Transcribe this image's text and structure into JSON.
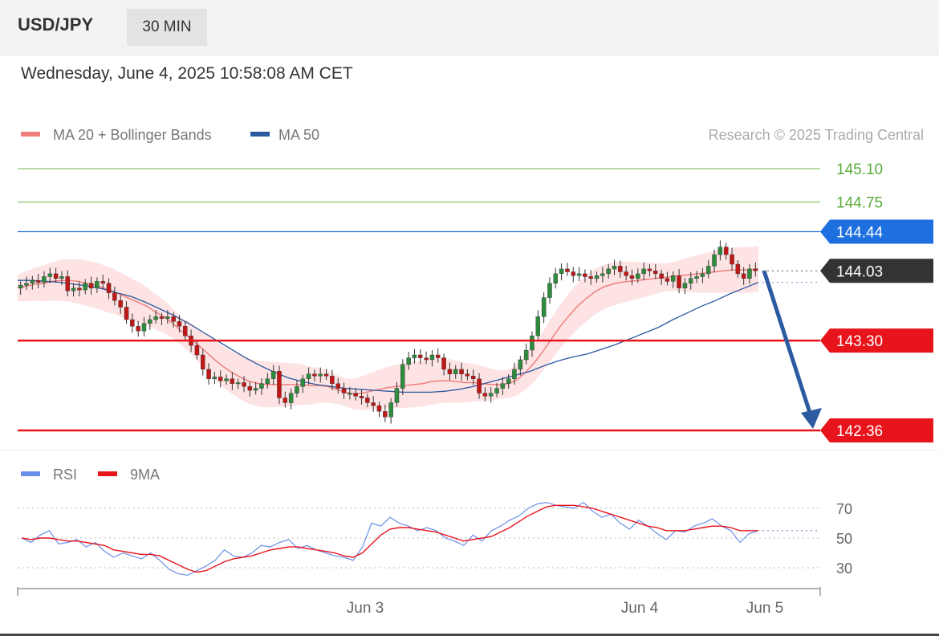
{
  "header": {
    "symbol": "USD/JPY",
    "timeframe": "30 MIN"
  },
  "date_label": "Wednesday, June 4, 2025 10:58:08 AM CET",
  "colors": {
    "bollinger": "#f08080",
    "ma50": "#2c5aa0",
    "resistance": "#8cc870",
    "pivot": "#1e6fe0",
    "support": "#e8141c",
    "current": "#333333",
    "rsi": "#6a8ee8",
    "rsi_ma": "#e8141c",
    "arrow": "#2c5aa0"
  },
  "chart_data": [
    {
      "type": "candlestick",
      "legend": [
        {
          "label": "MA 20 + Bollinger Bands",
          "color": "#f08080"
        },
        {
          "label": "MA 50",
          "color": "#2c5aa0"
        }
      ],
      "credit": "Research © 2025 Trading Central",
      "ylim": [
        142.3,
        145.2
      ],
      "levels": [
        {
          "label": "145.10",
          "value": 145.1,
          "kind": "resistance"
        },
        {
          "label": "144.75",
          "value": 144.75,
          "kind": "resistance"
        },
        {
          "label": "144.44",
          "value": 144.44,
          "kind": "pivot"
        },
        {
          "label": "144.03",
          "value": 144.03,
          "kind": "current"
        },
        {
          "label": "143.30",
          "value": 143.3,
          "kind": "support"
        },
        {
          "label": "142.36",
          "value": 142.36,
          "kind": "support"
        }
      ],
      "forecast_arrow": {
        "from": 144.03,
        "to": 142.36
      },
      "close": [
        143.88,
        143.9,
        143.93,
        143.91,
        143.97,
        144.0,
        143.95,
        143.97,
        143.82,
        143.85,
        143.83,
        143.9,
        143.85,
        143.92,
        143.9,
        143.8,
        143.72,
        143.65,
        143.52,
        143.45,
        143.4,
        143.48,
        143.52,
        143.55,
        143.53,
        143.55,
        143.5,
        143.45,
        143.35,
        143.25,
        143.15,
        143.0,
        142.9,
        142.92,
        142.88,
        142.9,
        142.85,
        142.86,
        142.82,
        142.78,
        142.8,
        142.85,
        142.9,
        142.98,
        142.7,
        142.65,
        142.75,
        142.82,
        142.9,
        142.95,
        142.93,
        142.95,
        142.93,
        142.85,
        142.8,
        142.75,
        142.75,
        142.72,
        142.7,
        142.65,
        142.62,
        142.56,
        142.5,
        142.65,
        142.8,
        143.05,
        143.12,
        143.15,
        143.12,
        143.1,
        143.15,
        143.12,
        143.0,
        142.95,
        143.0,
        142.95,
        142.93,
        142.9,
        142.75,
        142.72,
        142.75,
        142.8,
        142.85,
        142.9,
        143.0,
        143.1,
        143.2,
        143.35,
        143.55,
        143.75,
        143.9,
        144.0,
        144.05,
        144.02,
        143.98,
        144.0,
        143.97,
        143.95,
        143.98,
        144.0,
        144.05,
        144.08,
        144.02,
        143.98,
        143.95,
        144.0,
        144.05,
        144.03,
        144.0,
        143.95,
        143.92,
        143.98,
        143.85,
        143.9,
        143.95,
        143.97,
        144.0,
        144.08,
        144.2,
        144.28,
        144.2,
        144.1,
        144.0,
        143.95,
        144.05,
        144.03
      ],
      "ma20": [
        143.85,
        143.87,
        143.89,
        143.9,
        143.92,
        143.93,
        143.93,
        143.92,
        143.9,
        143.88,
        143.85,
        143.82,
        143.78,
        143.74,
        143.7,
        143.66,
        143.6,
        143.55,
        143.48,
        143.4,
        143.33,
        143.25,
        143.17,
        143.09,
        143.02,
        142.96,
        142.91,
        142.87,
        142.85,
        142.84,
        142.84,
        142.84,
        142.84,
        142.84,
        142.83,
        142.83,
        142.82,
        142.79,
        142.76,
        142.74,
        142.75,
        142.77,
        142.79,
        142.81,
        142.82,
        142.83,
        142.84,
        142.85,
        142.87,
        142.88,
        142.88,
        142.87,
        142.86,
        142.86,
        142.85,
        142.84,
        142.84,
        142.85,
        142.89,
        142.97,
        143.07,
        143.19,
        143.32,
        143.45,
        143.56,
        143.66,
        143.74,
        143.81,
        143.86,
        143.89,
        143.91,
        143.92,
        143.93,
        143.94,
        143.95,
        143.96,
        143.97,
        143.98,
        143.99,
        144.0,
        144.01,
        144.02,
        144.03,
        144.04,
        144.04,
        144.04,
        144.05
      ],
      "ma50": [
        143.93,
        143.93,
        143.92,
        143.91,
        143.89,
        143.87,
        143.84,
        143.8,
        143.76,
        143.7,
        143.63,
        143.56,
        143.48,
        143.39,
        143.3,
        143.21,
        143.12,
        143.04,
        142.97,
        142.91,
        142.87,
        142.84,
        142.82,
        142.8,
        142.79,
        142.78,
        142.77,
        142.76,
        142.76,
        142.76,
        142.77,
        142.79,
        142.82,
        142.86,
        142.9,
        142.94,
        142.98,
        143.04,
        143.09,
        143.13,
        143.16,
        143.21,
        143.26,
        143.32,
        143.38,
        143.44,
        143.52,
        143.59,
        143.66,
        143.72,
        143.79,
        143.85,
        143.91
      ],
      "x_ticks": [
        "Jun 3",
        "Jun 4",
        "Jun 5"
      ]
    },
    {
      "type": "line",
      "legend": [
        {
          "label": "RSI",
          "color": "#6a8ee8"
        },
        {
          "label": "9MA",
          "color": "#e8141c"
        }
      ],
      "ylim": [
        15,
        85
      ],
      "y_ticks": [
        "70",
        "50",
        "30"
      ],
      "rsi": [
        50,
        47,
        52,
        55,
        46,
        47,
        49,
        44,
        47,
        41,
        37,
        40,
        38,
        36,
        40,
        35,
        29,
        26,
        25,
        28,
        31,
        35,
        42,
        38,
        37,
        40,
        45,
        44,
        47,
        49,
        43,
        45,
        42,
        40,
        38,
        37,
        35,
        44,
        60,
        58,
        64,
        60,
        58,
        55,
        57,
        55,
        50,
        48,
        45,
        52,
        48,
        55,
        58,
        62,
        65,
        70,
        73,
        74,
        72,
        71,
        70,
        74,
        68,
        64,
        66,
        60,
        56,
        62,
        58,
        53,
        49,
        55,
        54,
        58,
        60,
        63,
        58,
        55,
        47,
        53,
        55
      ],
      "rsi_ma": [
        50,
        49,
        50,
        50,
        49,
        48,
        48,
        47,
        46,
        45,
        42,
        41,
        40,
        39,
        39,
        38,
        35,
        32,
        29,
        27,
        28,
        31,
        34,
        36,
        37,
        38,
        40,
        42,
        43,
        44,
        44,
        43,
        42,
        41,
        40,
        38,
        37,
        40,
        46,
        52,
        56,
        57,
        57,
        56,
        55,
        54,
        52,
        50,
        48,
        49,
        50,
        51,
        54,
        57,
        61,
        65,
        68,
        71,
        72,
        72,
        72,
        71,
        70,
        68,
        66,
        64,
        62,
        60,
        58,
        57,
        55,
        55,
        55,
        56,
        57,
        58,
        58,
        57,
        55,
        55,
        55
      ]
    }
  ]
}
